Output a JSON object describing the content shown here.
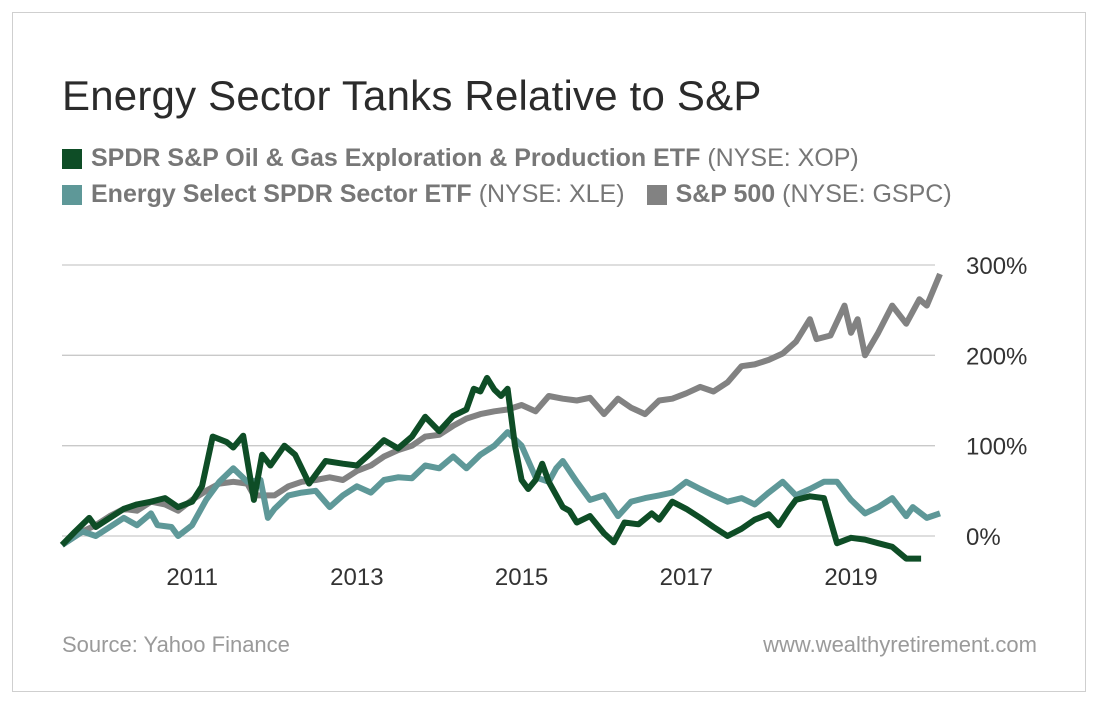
{
  "chart_data": {
    "type": "line",
    "title": "Energy Sector Tanks Relative to S&P",
    "xlabel": "",
    "ylabel": "",
    "xlim": [
      2009.4,
      2019.9
    ],
    "ylim": [
      -10,
      300
    ],
    "x_ticks": [
      "2011",
      "2013",
      "2015",
      "2017",
      "2019"
    ],
    "y_ticks": [
      "300%",
      "200%",
      "100%",
      "0%"
    ],
    "y_tick_values": [
      300,
      200,
      100,
      0
    ],
    "legend_placement": "top-left",
    "grid": "horizontal",
    "series": [
      {
        "name": "SPDR S&P Oil & Gas Exploration & Production ETF",
        "ticker": "(NYSE: XOP)",
        "color": "#0e4d26",
        "points": [
          [
            2009.42,
            -10
          ],
          [
            2009.58,
            5
          ],
          [
            2009.75,
            20
          ],
          [
            2009.83,
            10
          ],
          [
            2010.0,
            20
          ],
          [
            2010.17,
            30
          ],
          [
            2010.33,
            35
          ],
          [
            2010.5,
            38
          ],
          [
            2010.67,
            42
          ],
          [
            2010.83,
            32
          ],
          [
            2011.0,
            38
          ],
          [
            2011.12,
            55
          ],
          [
            2011.25,
            110
          ],
          [
            2011.42,
            104
          ],
          [
            2011.5,
            98
          ],
          [
            2011.62,
            111
          ],
          [
            2011.75,
            40
          ],
          [
            2011.85,
            90
          ],
          [
            2011.95,
            78
          ],
          [
            2012.12,
            100
          ],
          [
            2012.25,
            90
          ],
          [
            2012.42,
            58
          ],
          [
            2012.62,
            83
          ],
          [
            2012.83,
            80
          ],
          [
            2013.0,
            78
          ],
          [
            2013.17,
            92
          ],
          [
            2013.33,
            106
          ],
          [
            2013.5,
            97
          ],
          [
            2013.67,
            110
          ],
          [
            2013.83,
            132
          ],
          [
            2014.0,
            116
          ],
          [
            2014.17,
            133
          ],
          [
            2014.33,
            140
          ],
          [
            2014.42,
            163
          ],
          [
            2014.5,
            160
          ],
          [
            2014.58,
            175
          ],
          [
            2014.67,
            162
          ],
          [
            2014.75,
            155
          ],
          [
            2014.83,
            163
          ],
          [
            2014.92,
            100
          ],
          [
            2015.0,
            62
          ],
          [
            2015.08,
            52
          ],
          [
            2015.17,
            62
          ],
          [
            2015.25,
            80
          ],
          [
            2015.33,
            60
          ],
          [
            2015.5,
            32
          ],
          [
            2015.58,
            28
          ],
          [
            2015.67,
            15
          ],
          [
            2015.83,
            22
          ],
          [
            2016.0,
            3
          ],
          [
            2016.12,
            -7
          ],
          [
            2016.25,
            15
          ],
          [
            2016.42,
            13
          ],
          [
            2016.58,
            25
          ],
          [
            2016.67,
            18
          ],
          [
            2016.83,
            38
          ],
          [
            2017.0,
            30
          ],
          [
            2017.17,
            20
          ],
          [
            2017.33,
            10
          ],
          [
            2017.5,
            0
          ],
          [
            2017.67,
            8
          ],
          [
            2017.83,
            18
          ],
          [
            2018.0,
            24
          ],
          [
            2018.12,
            12
          ],
          [
            2018.25,
            30
          ],
          [
            2018.33,
            40
          ],
          [
            2018.5,
            44
          ],
          [
            2018.67,
            42
          ],
          [
            2018.83,
            -8
          ],
          [
            2019.0,
            -2
          ],
          [
            2019.17,
            -4
          ],
          [
            2019.33,
            -8
          ],
          [
            2019.5,
            -12
          ],
          [
            2019.67,
            -25
          ],
          [
            2019.85,
            -25
          ]
        ]
      },
      {
        "name": "Energy Select SPDR Sector ETF",
        "ticker": "(NYSE: XLE)",
        "color": "#5e9898",
        "points": [
          [
            2009.42,
            -10
          ],
          [
            2009.67,
            5
          ],
          [
            2009.83,
            0
          ],
          [
            2010.0,
            10
          ],
          [
            2010.17,
            20
          ],
          [
            2010.33,
            12
          ],
          [
            2010.5,
            25
          ],
          [
            2010.58,
            12
          ],
          [
            2010.75,
            10
          ],
          [
            2010.83,
            0
          ],
          [
            2011.0,
            12
          ],
          [
            2011.17,
            40
          ],
          [
            2011.33,
            60
          ],
          [
            2011.5,
            75
          ],
          [
            2011.67,
            60
          ],
          [
            2011.83,
            62
          ],
          [
            2011.92,
            20
          ],
          [
            2012.0,
            30
          ],
          [
            2012.17,
            45
          ],
          [
            2012.33,
            48
          ],
          [
            2012.5,
            50
          ],
          [
            2012.67,
            32
          ],
          [
            2012.83,
            45
          ],
          [
            2013.0,
            55
          ],
          [
            2013.17,
            48
          ],
          [
            2013.33,
            62
          ],
          [
            2013.5,
            65
          ],
          [
            2013.67,
            64
          ],
          [
            2013.83,
            78
          ],
          [
            2014.0,
            75
          ],
          [
            2014.17,
            88
          ],
          [
            2014.33,
            75
          ],
          [
            2014.5,
            90
          ],
          [
            2014.67,
            100
          ],
          [
            2014.83,
            115
          ],
          [
            2015.0,
            100
          ],
          [
            2015.17,
            65
          ],
          [
            2015.33,
            60
          ],
          [
            2015.42,
            75
          ],
          [
            2015.5,
            83
          ],
          [
            2015.67,
            60
          ],
          [
            2015.83,
            40
          ],
          [
            2016.0,
            45
          ],
          [
            2016.17,
            22
          ],
          [
            2016.33,
            38
          ],
          [
            2016.5,
            42
          ],
          [
            2016.67,
            45
          ],
          [
            2016.83,
            48
          ],
          [
            2017.0,
            60
          ],
          [
            2017.17,
            52
          ],
          [
            2017.33,
            45
          ],
          [
            2017.5,
            38
          ],
          [
            2017.67,
            42
          ],
          [
            2017.83,
            35
          ],
          [
            2018.0,
            48
          ],
          [
            2018.17,
            60
          ],
          [
            2018.33,
            45
          ],
          [
            2018.5,
            52
          ],
          [
            2018.67,
            60
          ],
          [
            2018.83,
            60
          ],
          [
            2019.0,
            40
          ],
          [
            2019.17,
            25
          ],
          [
            2019.33,
            32
          ],
          [
            2019.5,
            42
          ],
          [
            2019.67,
            22
          ],
          [
            2019.75,
            32
          ],
          [
            2019.92,
            20
          ],
          [
            2020.08,
            25
          ]
        ]
      },
      {
        "name": "S&P 500",
        "ticker": "(NYSE: GSPC)",
        "color": "#828282",
        "points": [
          [
            2009.42,
            -10
          ],
          [
            2009.67,
            5
          ],
          [
            2009.83,
            12
          ],
          [
            2010.0,
            22
          ],
          [
            2010.17,
            30
          ],
          [
            2010.33,
            28
          ],
          [
            2010.5,
            38
          ],
          [
            2010.67,
            35
          ],
          [
            2010.83,
            28
          ],
          [
            2011.0,
            40
          ],
          [
            2011.17,
            50
          ],
          [
            2011.33,
            58
          ],
          [
            2011.5,
            60
          ],
          [
            2011.67,
            58
          ],
          [
            2011.75,
            45
          ],
          [
            2011.83,
            45
          ],
          [
            2012.0,
            45
          ],
          [
            2012.17,
            55
          ],
          [
            2012.33,
            60
          ],
          [
            2012.5,
            62
          ],
          [
            2012.67,
            65
          ],
          [
            2012.83,
            62
          ],
          [
            2013.0,
            72
          ],
          [
            2013.17,
            78
          ],
          [
            2013.33,
            88
          ],
          [
            2013.5,
            95
          ],
          [
            2013.67,
            100
          ],
          [
            2013.83,
            110
          ],
          [
            2014.0,
            112
          ],
          [
            2014.17,
            122
          ],
          [
            2014.33,
            130
          ],
          [
            2014.5,
            135
          ],
          [
            2014.67,
            138
          ],
          [
            2014.83,
            140
          ],
          [
            2015.0,
            145
          ],
          [
            2015.17,
            138
          ],
          [
            2015.33,
            155
          ],
          [
            2015.5,
            152
          ],
          [
            2015.67,
            150
          ],
          [
            2015.83,
            153
          ],
          [
            2016.0,
            135
          ],
          [
            2016.17,
            152
          ],
          [
            2016.33,
            142
          ],
          [
            2016.5,
            135
          ],
          [
            2016.67,
            150
          ],
          [
            2016.83,
            152
          ],
          [
            2017.0,
            158
          ],
          [
            2017.17,
            165
          ],
          [
            2017.33,
            160
          ],
          [
            2017.5,
            170
          ],
          [
            2017.67,
            188
          ],
          [
            2017.83,
            190
          ],
          [
            2018.0,
            195
          ],
          [
            2018.17,
            202
          ],
          [
            2018.33,
            215
          ],
          [
            2018.5,
            240
          ],
          [
            2018.58,
            218
          ],
          [
            2018.75,
            222
          ],
          [
            2018.92,
            255
          ],
          [
            2019.0,
            225
          ],
          [
            2019.08,
            240
          ],
          [
            2019.17,
            200
          ],
          [
            2019.33,
            225
          ],
          [
            2019.5,
            255
          ],
          [
            2019.67,
            235
          ],
          [
            2019.83,
            262
          ],
          [
            2019.92,
            255
          ],
          [
            2020.08,
            290
          ]
        ]
      }
    ]
  },
  "footer": {
    "source": "Source: Yahoo Finance",
    "site": "www.wealthyretirement.com"
  }
}
